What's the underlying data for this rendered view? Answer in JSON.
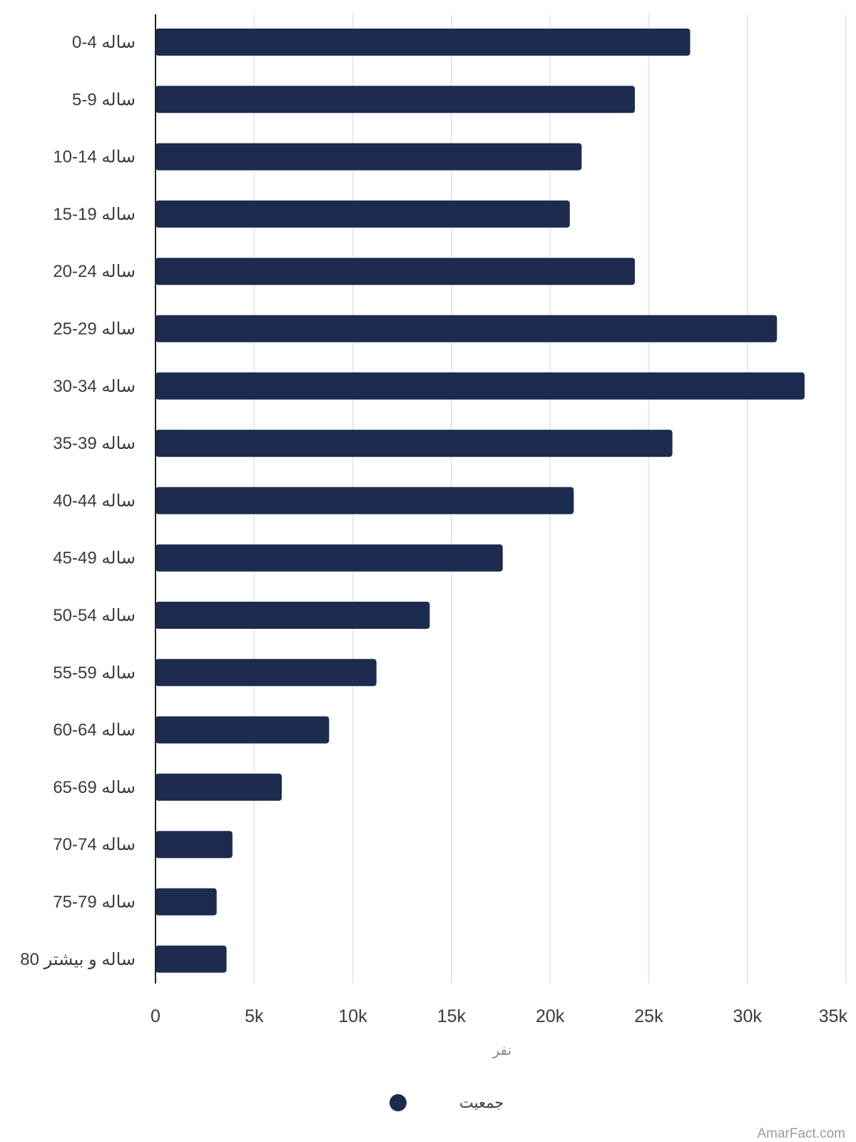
{
  "chart_data": {
    "type": "bar",
    "orientation": "horizontal",
    "categories": [
      "0-4 ساله",
      "5-9 ساله",
      "10-14 ساله",
      "15-19 ساله",
      "20-24 ساله",
      "25-29 ساله",
      "30-34 ساله",
      "35-39 ساله",
      "40-44 ساله",
      "45-49 ساله",
      "50-54 ساله",
      "55-59 ساله",
      "60-64 ساله",
      "65-69 ساله",
      "70-74 ساله",
      "75-79 ساله",
      "80 ساله و بیشتر"
    ],
    "series": [
      {
        "name": "جمعیت",
        "color": "#1c2b4e",
        "values": [
          27100,
          24300,
          21600,
          21000,
          24300,
          31500,
          32900,
          26200,
          21200,
          17600,
          13900,
          11200,
          8800,
          6400,
          3900,
          3100,
          3600
        ]
      }
    ],
    "x_ticks": [
      "0",
      "5k",
      "10k",
      "15k",
      "20k",
      "25k",
      "30k",
      "35k"
    ],
    "xlim": [
      0,
      35000
    ],
    "xlabel": "نفر",
    "grid": true,
    "legend_position": "bottom-center"
  },
  "watermark": "AmarFact.com"
}
